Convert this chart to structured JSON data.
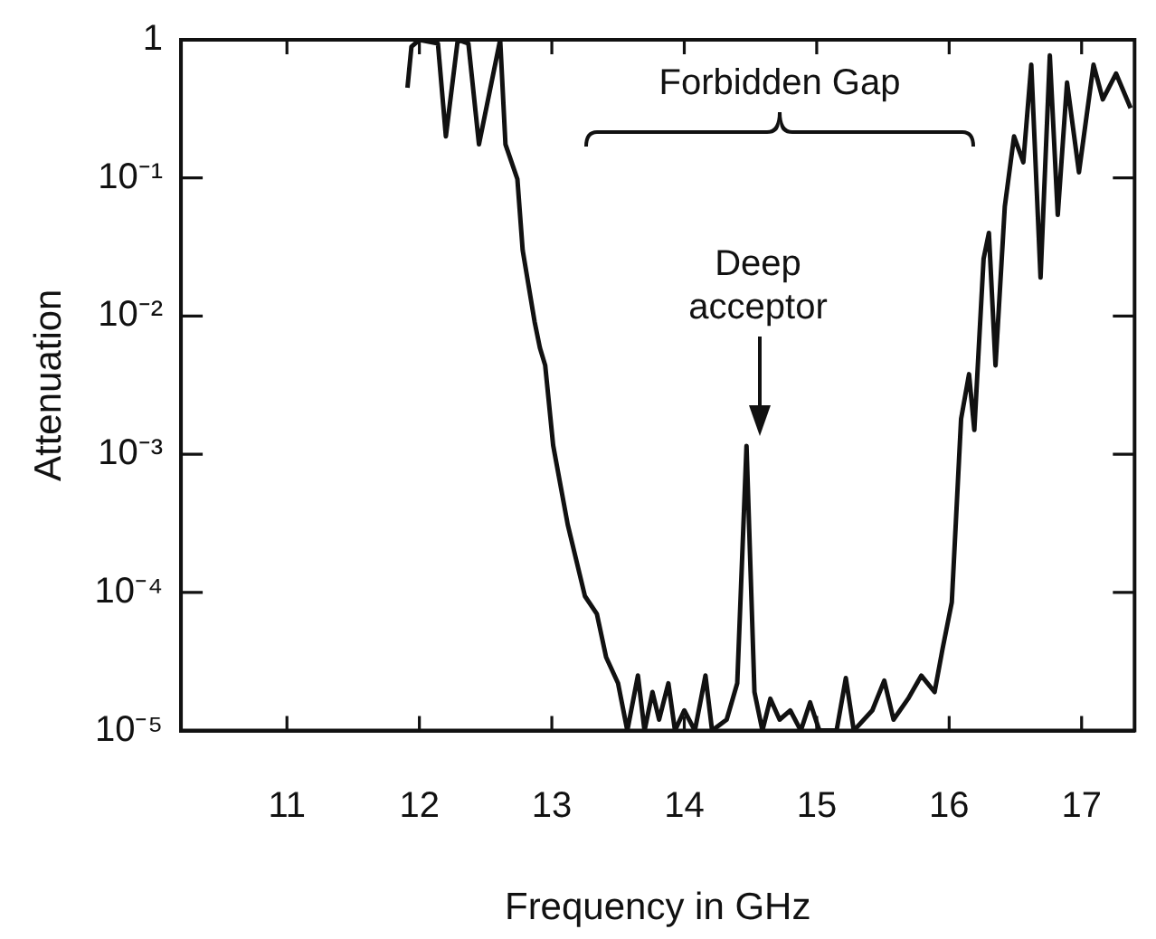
{
  "chart_data": {
    "type": "line",
    "xlabel": "Frequency in GHz",
    "ylabel": "Attenuation",
    "log": "y",
    "grid": false,
    "legend": false,
    "marker": "none",
    "line_style": "solid",
    "xlim": [
      10.2,
      17.4
    ],
    "xticks": [
      11,
      12,
      13,
      14,
      15,
      16,
      17
    ],
    "ylim": [
      1e-05,
      1
    ],
    "yticks": [
      {
        "value": 1,
        "label": "1"
      },
      {
        "value": 0.1,
        "label": "10⁻¹"
      },
      {
        "value": 0.01,
        "label": "10⁻²"
      },
      {
        "value": 0.001,
        "label": "10⁻³"
      },
      {
        "value": 0.0001,
        "label": "10⁻⁴"
      },
      {
        "value": 1e-05,
        "label": "10⁻⁵"
      }
    ],
    "annotations": [
      "Forbidden Gap",
      "Deep acceptor"
    ],
    "series": [
      {
        "color": "#111111",
        "x": [
          11.91,
          11.94,
          12.0,
          12.14,
          12.2,
          12.29,
          12.37,
          12.45,
          12.61,
          12.65,
          12.74,
          12.78,
          12.87,
          12.91,
          12.95,
          13.01,
          13.12,
          13.25,
          13.34,
          13.41,
          13.5,
          13.57,
          13.65,
          13.7,
          13.76,
          13.81,
          13.88,
          13.93,
          14.0,
          14.08,
          14.16,
          14.21,
          14.32,
          14.4,
          14.47,
          14.53,
          14.59,
          14.65,
          14.72,
          14.8,
          14.88,
          14.95,
          15.02,
          15.15,
          15.22,
          15.28,
          15.42,
          15.51,
          15.58,
          15.69,
          15.79,
          15.89,
          15.95,
          16.02,
          16.09,
          16.15,
          16.19,
          16.26,
          16.3,
          16.35,
          16.42,
          16.49,
          16.56,
          16.62,
          16.69,
          16.76,
          16.82,
          16.89,
          16.98,
          17.09,
          17.16,
          17.26,
          17.37
        ],
        "values": [
          0.45,
          0.89,
          1,
          0.94,
          0.2,
          1,
          0.94,
          0.175,
          1,
          0.175,
          0.098,
          0.03,
          0.0091,
          0.0059,
          0.0044,
          0.00116,
          0.00031,
          9.4e-05,
          7e-05,
          3.4e-05,
          2.2e-05,
          1e-05,
          2.5e-05,
          1e-05,
          1.9e-05,
          1.2e-05,
          2.2e-05,
          1e-05,
          1.4e-05,
          1e-05,
          2.5e-05,
          1e-05,
          1.2e-05,
          2.2e-05,
          0.00115,
          1.9e-05,
          1e-05,
          1.7e-05,
          1.2e-05,
          1.4e-05,
          1e-05,
          1.6e-05,
          1e-05,
          1e-05,
          2.4e-05,
          1e-05,
          1.4e-05,
          2.3e-05,
          1.2e-05,
          1.7e-05,
          2.5e-05,
          1.9e-05,
          3.9e-05,
          8.5e-05,
          0.0018,
          0.0038,
          0.0015,
          0.026,
          0.04,
          0.0044,
          0.062,
          0.2,
          0.13,
          0.66,
          0.019,
          0.77,
          0.054,
          0.49,
          0.11,
          0.66,
          0.37,
          0.57,
          0.32
        ]
      }
    ]
  }
}
